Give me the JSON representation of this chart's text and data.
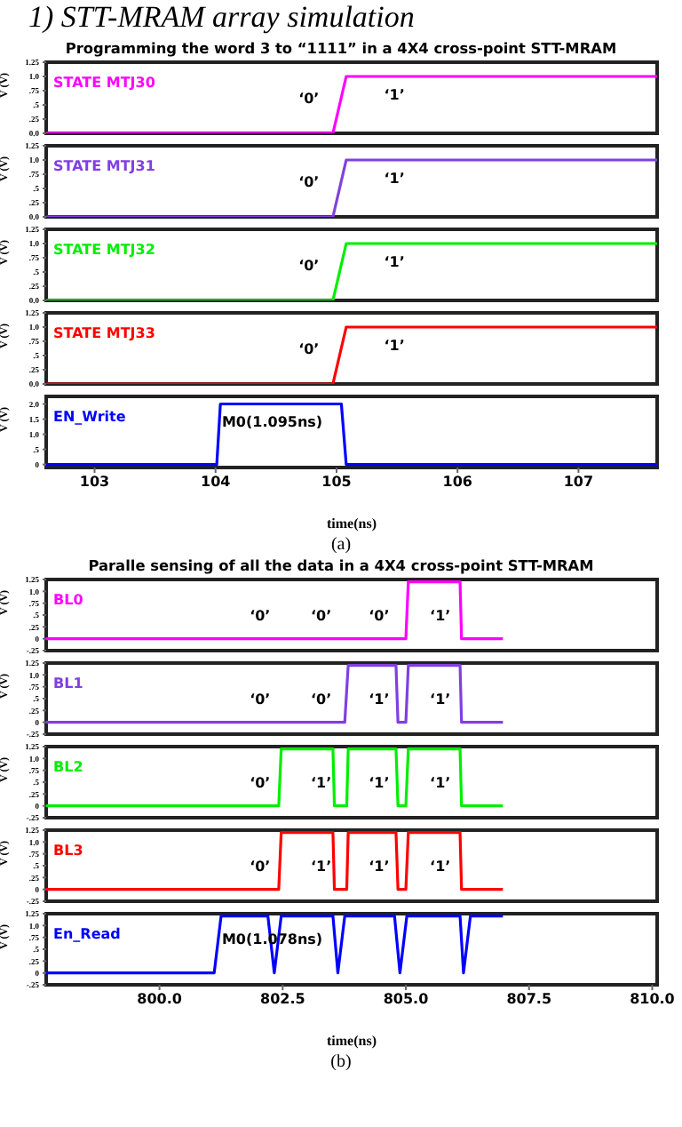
{
  "chart_data": [
    {
      "type": "line",
      "title": "Programming the word 3 to “1111” in a 4X4 cross-point STT-MRAM",
      "annotations": [
        "1)   STT-MRAM array simulation",
        "‘0’",
        "‘1’"
      ],
      "ylabel": "V (V)",
      "legend": "top left",
      "tick_labels": "y",
      "xlim": [
        102.6,
        107.65
      ],
      "ylim": [
        0,
        1.25
      ],
      "yticks": [
        {
          "value": 0,
          "label": "0.0"
        },
        {
          "value": 0.25,
          "label": ".25"
        },
        {
          "value": 0.5,
          "label": ".5"
        },
        {
          "value": 0.75,
          "label": ".75"
        },
        {
          "value": 1,
          "label": "1.0"
        },
        {
          "value": 1.25,
          "label": "1.25"
        }
      ],
      "series": [
        {
          "name": "STATE MTJ30",
          "color": "#ff00ff",
          "x": [
            102.6,
            104.97,
            105.08,
            107.65
          ],
          "values": [
            0,
            0,
            1,
            1
          ]
        }
      ]
    },
    {
      "type": "line",
      "annotations": [
        "‘0’",
        "‘1’"
      ],
      "ylabel": "V (V)",
      "legend": "top left",
      "tick_labels": "y",
      "xlim": [
        102.6,
        107.65
      ],
      "ylim": [
        0,
        1.25
      ],
      "yticks": [
        {
          "value": 0,
          "label": "0.0"
        },
        {
          "value": 0.25,
          "label": ".25"
        },
        {
          "value": 0.5,
          "label": ".5"
        },
        {
          "value": 0.75,
          "label": ".75"
        },
        {
          "value": 1,
          "label": "1.0"
        },
        {
          "value": 1.25,
          "label": "1.25"
        }
      ],
      "series": [
        {
          "name": "STATE MTJ31",
          "color": "#8040e0",
          "x": [
            102.6,
            104.97,
            105.08,
            107.65
          ],
          "values": [
            0,
            0,
            1,
            1
          ]
        }
      ]
    },
    {
      "type": "line",
      "annotations": [
        "‘0’",
        "‘1’"
      ],
      "ylabel": "V (V)",
      "legend": "top left",
      "tick_labels": "y",
      "xlim": [
        102.6,
        107.65
      ],
      "ylim": [
        0,
        1.25
      ],
      "yticks": [
        {
          "value": 0,
          "label": "0.0"
        },
        {
          "value": 0.25,
          "label": ".25"
        },
        {
          "value": 0.5,
          "label": ".5"
        },
        {
          "value": 0.75,
          "label": ".75"
        },
        {
          "value": 1,
          "label": "1.0"
        },
        {
          "value": 1.25,
          "label": "1.25"
        }
      ],
      "series": [
        {
          "name": "STATE MTJ32",
          "color": "#00ee00",
          "x": [
            102.6,
            104.97,
            105.08,
            107.65
          ],
          "values": [
            0,
            0,
            1,
            1
          ]
        }
      ]
    },
    {
      "type": "line",
      "annotations": [
        "‘0’",
        "‘1’"
      ],
      "ylabel": "V (V)",
      "legend": "top left",
      "tick_labels": "y",
      "xlim": [
        102.6,
        107.65
      ],
      "ylim": [
        0,
        1.25
      ],
      "yticks": [
        {
          "value": 0,
          "label": "0.0"
        },
        {
          "value": 0.25,
          "label": ".25"
        },
        {
          "value": 0.5,
          "label": ".5"
        },
        {
          "value": 0.75,
          "label": ".75"
        },
        {
          "value": 1,
          "label": "1.0"
        },
        {
          "value": 1.25,
          "label": "1.25"
        }
      ],
      "series": [
        {
          "name": "STATE MTJ33",
          "color": "#ff0000",
          "x": [
            102.6,
            104.97,
            105.08,
            107.65
          ],
          "values": [
            0,
            0,
            1,
            1
          ]
        }
      ]
    },
    {
      "type": "line",
      "annotations": [
        "M0(1.095ns)",
        "(a)"
      ],
      "xlabel": "time(ns)",
      "ylabel": "V (V)",
      "legend": "top left",
      "xlim": [
        102.6,
        107.65
      ],
      "xticks": [
        103,
        104,
        105,
        106,
        107
      ],
      "ylim": [
        -0.1,
        2.25
      ],
      "yticks": [
        {
          "value": 0,
          "label": "0"
        },
        {
          "value": 0.5,
          "label": ".5"
        },
        {
          "value": 1,
          "label": "1.0"
        },
        {
          "value": 1.5,
          "label": "1.5"
        },
        {
          "value": 2,
          "label": "2.0"
        }
      ],
      "series": [
        {
          "name": "EN_Write",
          "color": "#0000ff",
          "x": [
            102.6,
            104.01,
            104.04,
            105.04,
            105.08,
            107.65
          ],
          "values": [
            0,
            0,
            2,
            2,
            0,
            0
          ]
        }
      ]
    },
    {
      "type": "line",
      "title": "Paralle sensing of all the data in a 4X4 cross-point STT-MRAM",
      "annotations": [
        "‘0’",
        "‘0’",
        "‘0’",
        "‘1’"
      ],
      "ylabel": "V (V)",
      "legend": "top left",
      "tick_labels": "y",
      "xlim": [
        797.7,
        810.1
      ],
      "ylim": [
        -0.25,
        1.25
      ],
      "yticks": [
        {
          "value": -0.25,
          "label": "-.25"
        },
        {
          "value": 0,
          "label": "0"
        },
        {
          "value": 0.25,
          "label": ".25"
        },
        {
          "value": 0.5,
          "label": ".5"
        },
        {
          "value": 0.75,
          "label": ".75"
        },
        {
          "value": 1,
          "label": "1.0"
        },
        {
          "value": 1.25,
          "label": "1.25"
        }
      ],
      "series": [
        {
          "name": "BL0",
          "color": "#ff00ff",
          "x": [
            797.7,
            805.0,
            805.05,
            806.1,
            806.13,
            806.97
          ],
          "values": [
            0,
            0,
            1.2,
            1.2,
            0,
            0
          ]
        }
      ]
    },
    {
      "type": "line",
      "annotations": [
        "‘0’",
        "‘0’",
        "‘1’",
        "‘1’"
      ],
      "ylabel": "V (V)",
      "legend": "top left",
      "tick_labels": "y",
      "xlim": [
        797.7,
        810.1
      ],
      "ylim": [
        -0.25,
        1.25
      ],
      "yticks": [
        {
          "value": -0.25,
          "label": "-.25"
        },
        {
          "value": 0,
          "label": "0"
        },
        {
          "value": 0.25,
          "label": ".25"
        },
        {
          "value": 0.5,
          "label": ".5"
        },
        {
          "value": 0.75,
          "label": ".75"
        },
        {
          "value": 1,
          "label": "1.0"
        },
        {
          "value": 1.25,
          "label": "1.25"
        }
      ],
      "series": [
        {
          "name": "BL1",
          "color": "#8040e0",
          "x": [
            797.7,
            803.76,
            803.83,
            804.8,
            804.84,
            805.0,
            805.05,
            806.1,
            806.13,
            806.97
          ],
          "values": [
            0,
            0,
            1.2,
            1.2,
            0,
            0,
            1.2,
            1.2,
            0,
            0
          ]
        }
      ]
    },
    {
      "type": "line",
      "annotations": [
        "‘0’",
        "‘1’",
        "‘1’",
        "‘1’"
      ],
      "ylabel": "V (V)",
      "legend": "top left",
      "tick_labels": "y",
      "xlim": [
        797.7,
        810.1
      ],
      "ylim": [
        -0.25,
        1.25
      ],
      "yticks": [
        {
          "value": -0.25,
          "label": "-.25"
        },
        {
          "value": 0,
          "label": "0"
        },
        {
          "value": 0.25,
          "label": ".25"
        },
        {
          "value": 0.5,
          "label": ".5"
        },
        {
          "value": 0.75,
          "label": ".75"
        },
        {
          "value": 1,
          "label": "1.0"
        },
        {
          "value": 1.25,
          "label": "1.25"
        }
      ],
      "series": [
        {
          "name": "BL2",
          "color": "#00ee00",
          "x": [
            797.7,
            802.42,
            802.47,
            803.52,
            803.55,
            803.8,
            803.83,
            804.8,
            804.84,
            805.0,
            805.05,
            806.1,
            806.13,
            806.97
          ],
          "values": [
            0,
            0,
            1.2,
            1.2,
            0,
            0,
            1.2,
            1.2,
            0,
            0,
            1.2,
            1.2,
            0,
            0
          ]
        }
      ]
    },
    {
      "type": "line",
      "annotations": [
        "‘0’",
        "‘1’",
        "‘1’",
        "‘1’"
      ],
      "ylabel": "V (V)",
      "legend": "top left",
      "tick_labels": "y",
      "xlim": [
        797.7,
        810.1
      ],
      "ylim": [
        -0.25,
        1.25
      ],
      "yticks": [
        {
          "value": -0.25,
          "label": "-.25"
        },
        {
          "value": 0,
          "label": "0"
        },
        {
          "value": 0.25,
          "label": ".25"
        },
        {
          "value": 0.5,
          "label": ".5"
        },
        {
          "value": 0.75,
          "label": ".75"
        },
        {
          "value": 1,
          "label": "1.0"
        },
        {
          "value": 1.25,
          "label": "1.25"
        }
      ],
      "series": [
        {
          "name": "BL3",
          "color": "#ff0000",
          "x": [
            797.7,
            802.42,
            802.47,
            803.52,
            803.55,
            803.8,
            803.83,
            804.8,
            804.84,
            805.0,
            805.05,
            806.1,
            806.13,
            806.97
          ],
          "values": [
            0,
            0,
            1.2,
            1.2,
            0,
            0,
            1.2,
            1.2,
            0,
            0,
            1.2,
            1.2,
            0,
            0
          ]
        }
      ]
    },
    {
      "type": "line",
      "annotations": [
        "M0(1.078ns)",
        "(b)"
      ],
      "xlabel": "time(ns)",
      "ylabel": "V (V)",
      "legend": "top left",
      "xlim": [
        797.7,
        810.1
      ],
      "xticks": [
        {
          "value": 800,
          "label": "800.0"
        },
        802.5,
        {
          "value": 805,
          "label": "805.0"
        },
        807.5,
        {
          "value": 810,
          "label": "810.0"
        }
      ],
      "ylim": [
        -0.25,
        1.25
      ],
      "yticks": [
        {
          "value": -0.25,
          "label": "-.25"
        },
        {
          "value": 0,
          "label": "0"
        },
        {
          "value": 0.25,
          "label": ".25"
        },
        {
          "value": 0.5,
          "label": ".5"
        },
        {
          "value": 0.75,
          "label": ".75"
        },
        {
          "value": 1,
          "label": "1.0"
        },
        {
          "value": 1.25,
          "label": "1.25"
        }
      ],
      "series": [
        {
          "name": "En_Read",
          "color": "#0000ff",
          "x": [
            797.7,
            801.11,
            801.25,
            802.2,
            802.33,
            802.47,
            803.52,
            803.62,
            803.76,
            804.77,
            804.88,
            805.02,
            806.1,
            806.17,
            806.31,
            806.97
          ],
          "values": [
            0,
            0,
            1.2,
            1.2,
            0,
            1.2,
            1.2,
            0,
            1.2,
            1.2,
            0,
            1.2,
            1.2,
            0,
            1.2,
            1.2
          ]
        }
      ]
    }
  ]
}
